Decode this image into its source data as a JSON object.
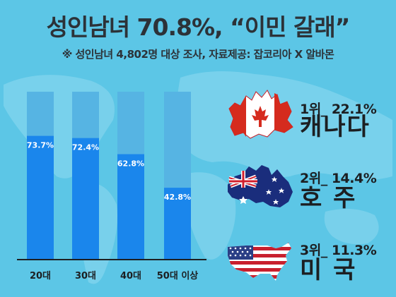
{
  "title": "성인남녀 70.8%, “이민 갈래”",
  "subtitle": "※ 성인남녀 4,802명 대상 조사,   자료제공: 잡코리아 X 알바몬",
  "colors": {
    "background": "#5cc6e6",
    "bar_track": "#56b4e3",
    "bar_fill": "#1a86ec",
    "text_dark": "#1c1f22"
  },
  "chart_data": {
    "type": "bar",
    "categories": [
      "20대",
      "30대",
      "40대",
      "50대 이상"
    ],
    "values": [
      73.7,
      72.4,
      62.8,
      42.8
    ],
    "value_labels": [
      "73.7%",
      "72.4%",
      "62.8%",
      "42.8%"
    ],
    "ylim": [
      0,
      100
    ],
    "grid": false,
    "title": "",
    "xlabel": "",
    "ylabel": ""
  },
  "rankings": [
    {
      "rank_line": "1위_ 22.1%",
      "country": "캐나다",
      "flag_icon": "canada-map-flag-icon"
    },
    {
      "rank_line": "2위_ 14.4%",
      "country": "호 주",
      "flag_icon": "australia-map-flag-icon"
    },
    {
      "rank_line": "3위_ 11.3%",
      "country": "미 국",
      "flag_icon": "usa-map-flag-icon"
    }
  ]
}
